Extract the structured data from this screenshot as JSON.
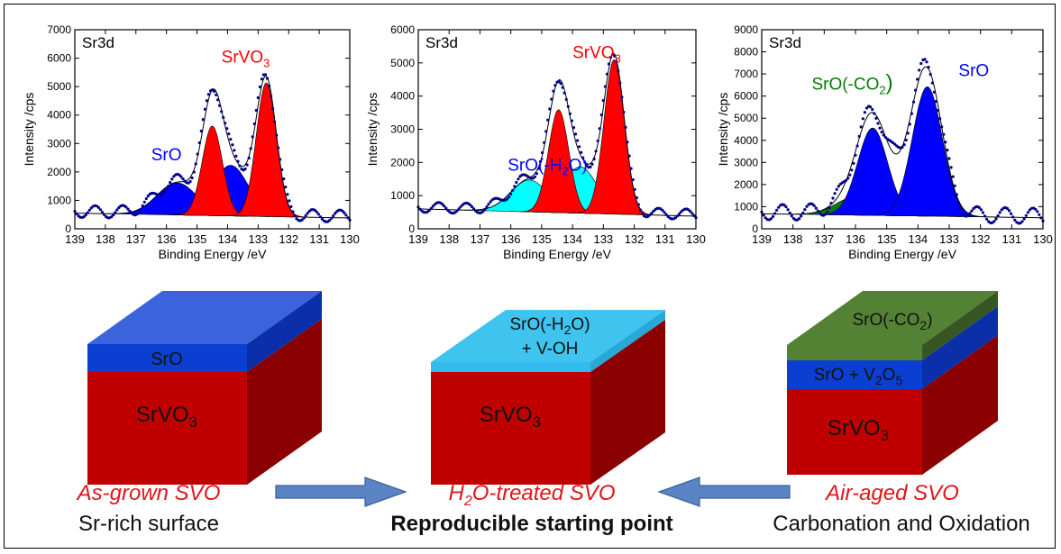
{
  "colors": {
    "red": "#ff0000",
    "blue": "#0000ff",
    "cyan": "#00ffff",
    "green": "#008000",
    "dots": "#00008b"
  },
  "chart_data": [
    {
      "type": "area",
      "panel_label": "Sr3d",
      "xlabel": "Binding Energy /eV",
      "ylabel": "Intensity /cps",
      "xlim": [
        139,
        130
      ],
      "ylim": [
        0,
        7000
      ],
      "xticks": [
        "139",
        "138",
        "137",
        "136",
        "135",
        "134",
        "133",
        "132",
        "131",
        "130"
      ],
      "yticks": [
        "0",
        "1000",
        "2000",
        "3000",
        "4000",
        "5000",
        "6000",
        "7000"
      ],
      "baseline": {
        "start": 550,
        "end": 380
      },
      "components": [
        {
          "name": "SrO",
          "color": "#0000ff",
          "peaks": [
            {
              "center": 135.65,
              "height": 1130,
              "sigma": 0.65
            },
            {
              "center": 133.9,
              "height": 1780,
              "sigma": 0.58
            }
          ]
        },
        {
          "name": "SrVO3",
          "color": "#ff0000",
          "peaks": [
            {
              "center": 134.5,
              "height": 3150,
              "sigma": 0.33
            },
            {
              "center": 132.73,
              "height": 4700,
              "sigma": 0.33
            }
          ]
        }
      ],
      "annotations": [
        {
          "text": "SrO",
          "color": "#0000ff",
          "x": 136.5,
          "y": 2400
        },
        {
          "text": "SrVO",
          "sub": "3",
          "color": "#ff0000",
          "x": 134.2,
          "y": 5850
        }
      ]
    },
    {
      "type": "area",
      "panel_label": "Sr3d",
      "xlabel": "Binding Energy /eV",
      "ylabel": "Intensity /cps",
      "xlim": [
        139,
        130
      ],
      "ylim": [
        0,
        6000
      ],
      "xticks": [
        "139",
        "138",
        "137",
        "136",
        "135",
        "134",
        "133",
        "132",
        "131",
        "130"
      ],
      "yticks": [
        "0",
        "1000",
        "2000",
        "3000",
        "4000",
        "5000",
        "6000"
      ],
      "baseline": {
        "start": 600,
        "end": 380
      },
      "components": [
        {
          "name": "SrO(-H2O)",
          "color": "#00ffff",
          "peaks": [
            {
              "center": 135.4,
              "height": 960,
              "sigma": 0.6
            },
            {
              "center": 133.75,
              "height": 1400,
              "sigma": 0.55
            }
          ]
        },
        {
          "name": "SrVO3",
          "color": "#ff0000",
          "peaks": [
            {
              "center": 134.45,
              "height": 3100,
              "sigma": 0.33
            },
            {
              "center": 132.65,
              "height": 4650,
              "sigma": 0.33
            }
          ]
        }
      ],
      "annotations": [
        {
          "text": "SrO(-H",
          "sub": "2",
          "after": "O)",
          "color": "#0000ff",
          "x": 136.1,
          "y": 1750
        },
        {
          "text": "SrVO",
          "sub": "3",
          "color": "#ff0000",
          "x": 134.0,
          "y": 5150
        }
      ]
    },
    {
      "type": "area",
      "panel_label": "Sr3d",
      "xlabel": "Binding Energy /eV",
      "ylabel": "Intensity /cps",
      "xlim": [
        139,
        130
      ],
      "ylim": [
        0,
        9000
      ],
      "xticks": [
        "139",
        "138",
        "137",
        "136",
        "135",
        "134",
        "133",
        "132",
        "131",
        "130"
      ],
      "yticks": [
        "0",
        "1000",
        "2000",
        "3000",
        "4000",
        "5000",
        "6000",
        "7000",
        "8000",
        "9000"
      ],
      "baseline": {
        "start": 680,
        "end": 500
      },
      "components": [
        {
          "name": "SrO(-CO2)",
          "color": "#008000",
          "peaks": [
            {
              "center": 136.0,
              "height": 820,
              "sigma": 0.62
            },
            {
              "center": 134.2,
              "height": 1220,
              "sigma": 0.6
            }
          ]
        },
        {
          "name": "SrO",
          "color": "#0000ff",
          "peaks": [
            {
              "center": 135.45,
              "height": 3950,
              "sigma": 0.48
            },
            {
              "center": 133.7,
              "height": 5850,
              "sigma": 0.48
            }
          ]
        }
      ],
      "annotations": [
        {
          "text": "SrO(-CO",
          "sub": "2",
          "after": ")",
          "color": "#008000",
          "x": 137.4,
          "y": 6300
        },
        {
          "text": "SrO",
          "color": "#0000ff",
          "x": 132.7,
          "y": 6900
        }
      ]
    }
  ],
  "blocks": [
    {
      "top_label": "SrO",
      "substrate_label": "SrVO",
      "substrate_sub": "3"
    },
    {
      "top_label_line1": "SrO(-H",
      "top_label_line1_sub": "2",
      "top_label_line1_after": "O)",
      "top_label_line2": "+ V-OH",
      "substrate_label": "SrVO",
      "substrate_sub": "3"
    },
    {
      "top_label": "SrO(-CO",
      "top_label_sub": "2",
      "top_label_after": ")",
      "mid_label": "SrO + V",
      "mid_label_sub": "2",
      "mid_label_after": "O",
      "mid_label_sub2": "5",
      "substrate_label": "SrVO",
      "substrate_sub": "3"
    }
  ],
  "captions": {
    "left_title": "As-grown SVO",
    "left_sub": "Sr-rich surface",
    "center_title_pre": "H",
    "center_title_sub": "2",
    "center_title_post": "O-treated SVO",
    "center_sub": "Reproducible starting point",
    "right_title": "Air-aged SVO",
    "right_sub": "Carbonation and Oxidation"
  }
}
